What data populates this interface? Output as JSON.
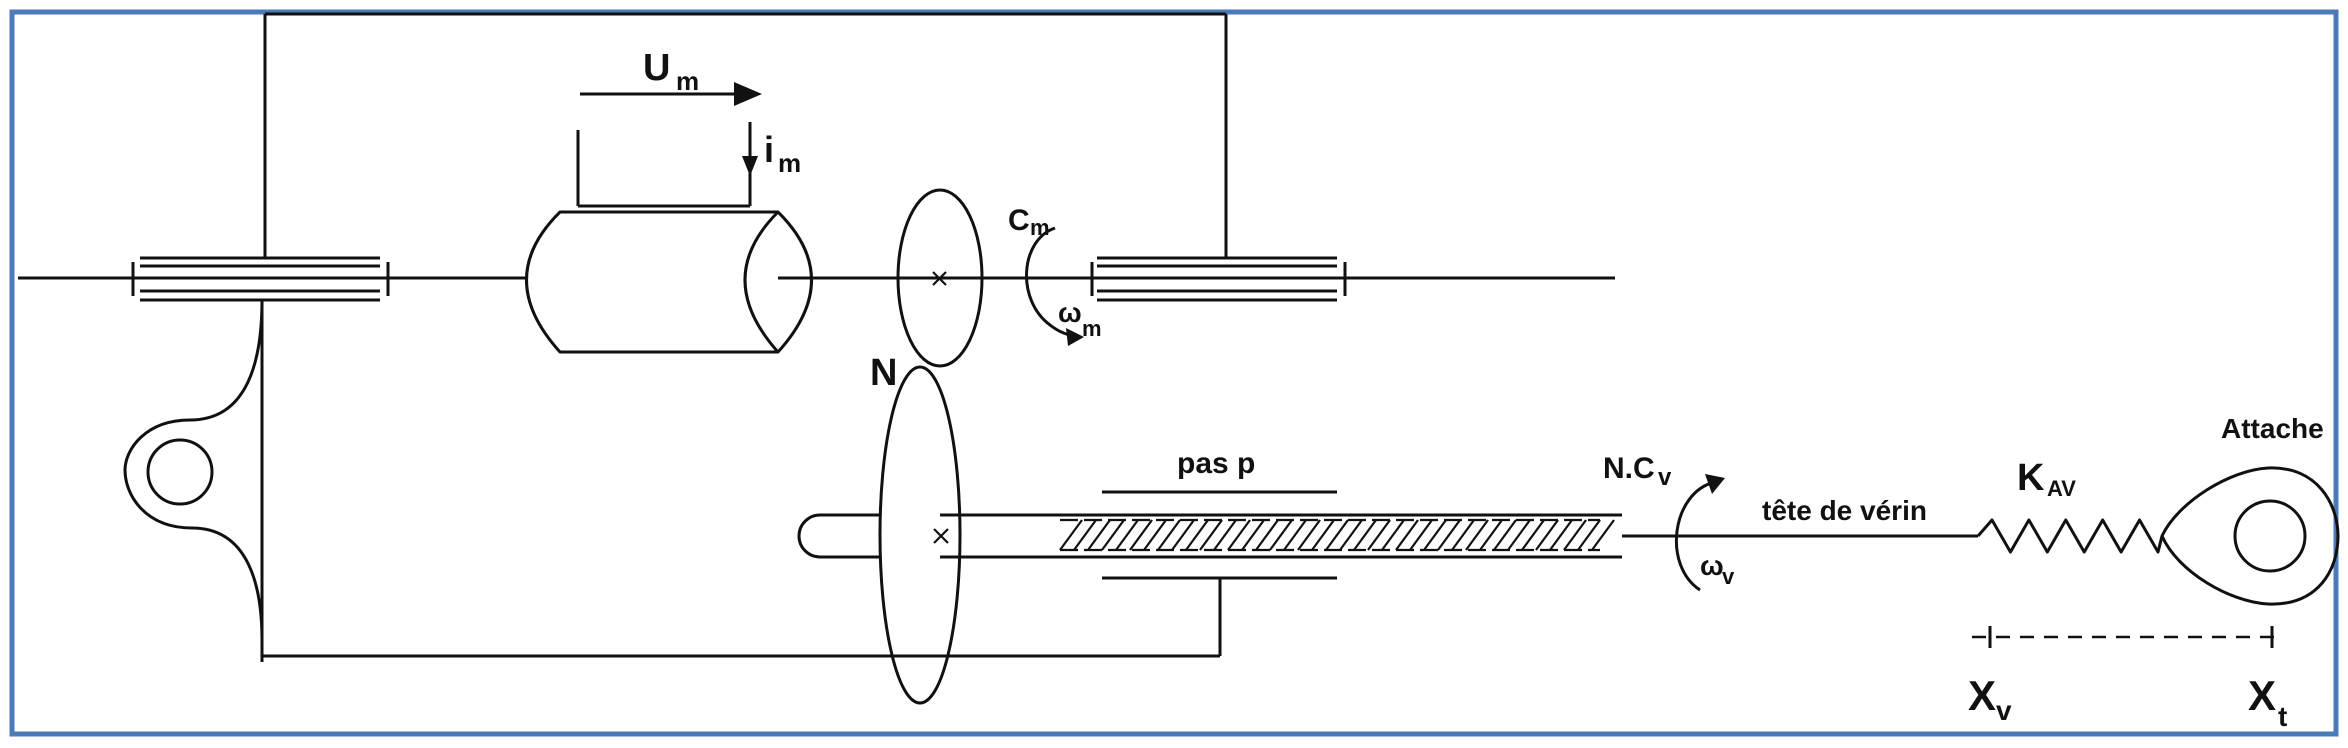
{
  "diagram": {
    "frame_color": "#4a7ab8",
    "line_color": "#111111",
    "labels": {
      "voltage_main": "U",
      "voltage_sub": "m",
      "current_main": "i",
      "current_sub": "m",
      "torque_main": "C",
      "torque_sub": "m",
      "motor_speed_main": "ω",
      "motor_speed_sub": "m",
      "ratio": "N",
      "screw_pitch": "pas p",
      "screw_torque_main": "N.C",
      "screw_torque_sub": "v",
      "screw_speed_main": "ω",
      "screw_speed_sub": "v",
      "rod_head": "tête de vérin",
      "stiffness_main": "K",
      "stiffness_sub": "AV",
      "attachment": "Attache",
      "pos_rod_main": "X",
      "pos_rod_sub": "v",
      "pos_attach_main": "X",
      "pos_attach_sub": "t"
    }
  }
}
